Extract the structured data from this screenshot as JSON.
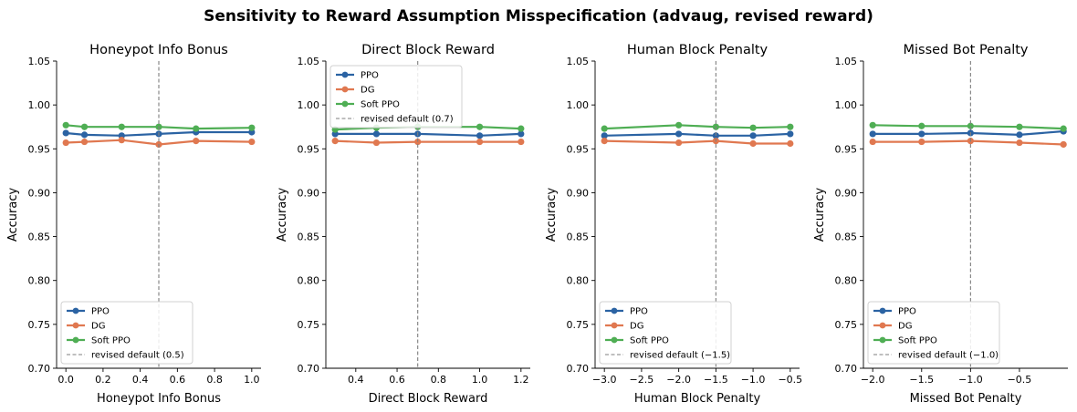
{
  "figure": {
    "title": "Sensitivity to Reward Assumption Misspecification (advaug, revised reward)"
  },
  "colors": {
    "PPO": "#2b63a3",
    "DG": "#e07850",
    "Soft PPO": "#4fae54",
    "default_line": "#7f7f7f"
  },
  "chart_data": [
    {
      "type": "line",
      "title": "Honeypot Info Bonus",
      "xlabel": "Honeypot Info Bonus",
      "ylabel": "Accuracy",
      "xlim": [
        -0.05,
        1.05
      ],
      "ylim": [
        0.7,
        1.05
      ],
      "xticks": [
        0.0,
        0.2,
        0.4,
        0.6,
        0.8,
        1.0
      ],
      "xtick_labels": [
        "0.0",
        "0.2",
        "0.4",
        "0.6",
        "0.8",
        "1.0"
      ],
      "yticks": [
        0.7,
        0.75,
        0.8,
        0.85,
        0.9,
        0.95,
        1.0,
        1.05
      ],
      "ytick_labels": [
        "0.70",
        "0.75",
        "0.80",
        "0.85",
        "0.90",
        "0.95",
        "1.00",
        "1.05"
      ],
      "x": [
        0.0,
        0.1,
        0.3,
        0.5,
        0.7,
        1.0
      ],
      "series": [
        {
          "name": "PPO",
          "values": [
            0.968,
            0.966,
            0.965,
            0.967,
            0.969,
            0.969
          ]
        },
        {
          "name": "DG",
          "values": [
            0.957,
            0.958,
            0.96,
            0.955,
            0.959,
            0.958
          ]
        },
        {
          "name": "Soft PPO",
          "values": [
            0.977,
            0.975,
            0.975,
            0.975,
            0.973,
            0.974
          ]
        }
      ],
      "default_x": 0.5,
      "default_label": "revised default (0.5)",
      "legend": "lower-left"
    },
    {
      "type": "line",
      "title": "Direct Block Reward",
      "xlabel": "Direct Block Reward",
      "ylabel": "Accuracy",
      "xlim": [
        0.255,
        1.245
      ],
      "ylim": [
        0.7,
        1.05
      ],
      "xticks": [
        0.4,
        0.6,
        0.8,
        1.0,
        1.2
      ],
      "xtick_labels": [
        "0.4",
        "0.6",
        "0.8",
        "1.0",
        "1.2"
      ],
      "yticks": [
        0.7,
        0.75,
        0.8,
        0.85,
        0.9,
        0.95,
        1.0,
        1.05
      ],
      "ytick_labels": [
        "0.70",
        "0.75",
        "0.80",
        "0.85",
        "0.90",
        "0.95",
        "1.00",
        "1.05"
      ],
      "x": [
        0.3,
        0.5,
        0.7,
        1.0,
        1.2
      ],
      "series": [
        {
          "name": "PPO",
          "values": [
            0.967,
            0.967,
            0.967,
            0.965,
            0.967
          ]
        },
        {
          "name": "DG",
          "values": [
            0.959,
            0.957,
            0.958,
            0.958,
            0.958
          ]
        },
        {
          "name": "Soft PPO",
          "values": [
            0.972,
            0.974,
            0.975,
            0.975,
            0.973
          ]
        }
      ],
      "default_x": 0.7,
      "default_label": "revised default (0.7)",
      "legend": "upper-left"
    },
    {
      "type": "line",
      "title": "Human Block Penalty",
      "xlabel": "Human Block Penalty",
      "ylabel": "Accuracy",
      "xlim": [
        -3.125,
        -0.375
      ],
      "ylim": [
        0.7,
        1.05
      ],
      "xticks": [
        -3.0,
        -2.5,
        -2.0,
        -1.5,
        -1.0,
        -0.5
      ],
      "xtick_labels": [
        "−3.0",
        "−2.5",
        "−2.0",
        "−1.5",
        "−1.0",
        "−0.5"
      ],
      "yticks": [
        0.7,
        0.75,
        0.8,
        0.85,
        0.9,
        0.95,
        1.0,
        1.05
      ],
      "ytick_labels": [
        "0.70",
        "0.75",
        "0.80",
        "0.85",
        "0.90",
        "0.95",
        "1.00",
        "1.05"
      ],
      "x": [
        -3.0,
        -2.0,
        -1.5,
        -1.0,
        -0.5
      ],
      "series": [
        {
          "name": "PPO",
          "values": [
            0.965,
            0.967,
            0.965,
            0.965,
            0.967
          ]
        },
        {
          "name": "DG",
          "values": [
            0.959,
            0.957,
            0.959,
            0.956,
            0.956
          ]
        },
        {
          "name": "Soft PPO",
          "values": [
            0.973,
            0.977,
            0.975,
            0.974,
            0.975
          ]
        }
      ],
      "default_x": -1.5,
      "default_label": "revised default (−1.5)",
      "legend": "lower-left"
    },
    {
      "type": "line",
      "title": "Missed Bot Penalty",
      "xlabel": "Missed Bot Penalty",
      "ylabel": "Accuracy",
      "xlim": [
        -2.095,
        -0.005
      ],
      "ylim": [
        0.7,
        1.05
      ],
      "xticks": [
        -2.0,
        -1.5,
        -1.0,
        -0.5
      ],
      "xtick_labels": [
        "−2.0",
        "−1.5",
        "−1.0",
        "−0.5"
      ],
      "yticks": [
        0.7,
        0.75,
        0.8,
        0.85,
        0.9,
        0.95,
        1.0,
        1.05
      ],
      "ytick_labels": [
        "0.70",
        "0.75",
        "0.80",
        "0.85",
        "0.90",
        "0.95",
        "1.00",
        "1.05"
      ],
      "x": [
        -2.0,
        -1.5,
        -1.0,
        -0.5,
        -0.05
      ],
      "series": [
        {
          "name": "PPO",
          "values": [
            0.967,
            0.967,
            0.968,
            0.966,
            0.97
          ]
        },
        {
          "name": "DG",
          "values": [
            0.958,
            0.958,
            0.959,
            0.957,
            0.955
          ]
        },
        {
          "name": "Soft PPO",
          "values": [
            0.977,
            0.976,
            0.976,
            0.975,
            0.973
          ]
        }
      ],
      "default_x": -1.0,
      "default_label": "revised default (−1.0)",
      "legend": "lower-left"
    }
  ]
}
